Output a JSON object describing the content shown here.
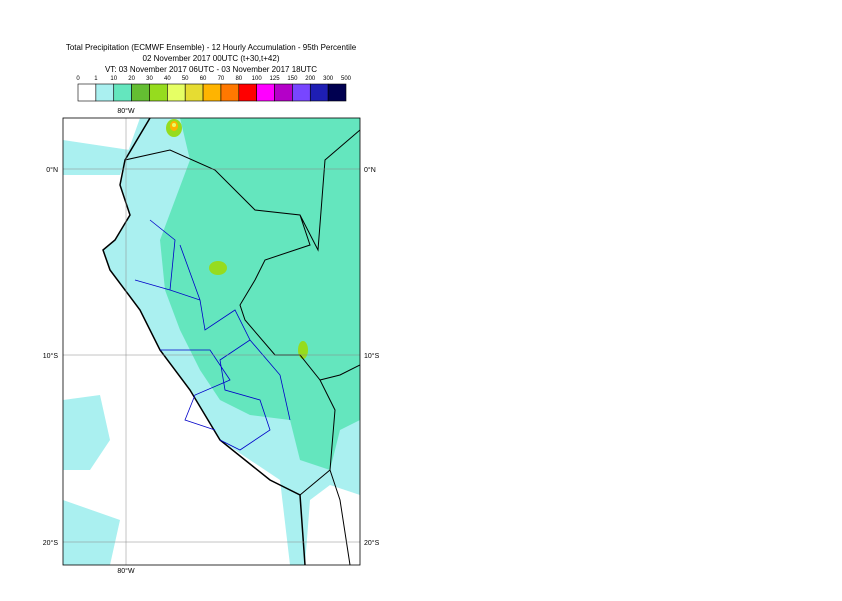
{
  "header": {
    "title": "Total Precipitation (ECMWF Ensemble) - 12 Hourly Accumulation - 95th Percentile",
    "run": "02 November 2017 00UTC (t+30,t+42)",
    "valid": "VT: 03 November 2017 06UTC - 03 November 2017 18UTC"
  },
  "colorbar": {
    "levels": [
      0,
      1,
      10,
      20,
      30,
      40,
      50,
      60,
      70,
      80,
      100,
      125,
      150,
      200,
      300,
      500
    ],
    "colors": [
      "#ffffff",
      "#aaf0f0",
      "#64e6be",
      "#64be32",
      "#96dc1e",
      "#e6ff64",
      "#e6dc32",
      "#ffb400",
      "#ff7800",
      "#ff0000",
      "#ff00ff",
      "#b400c8",
      "#7846ff",
      "#1e1eb4",
      "#000050"
    ]
  },
  "map": {
    "lon_label": "80°W",
    "lat_labels": [
      "0°N",
      "10°S",
      "20°S"
    ]
  }
}
